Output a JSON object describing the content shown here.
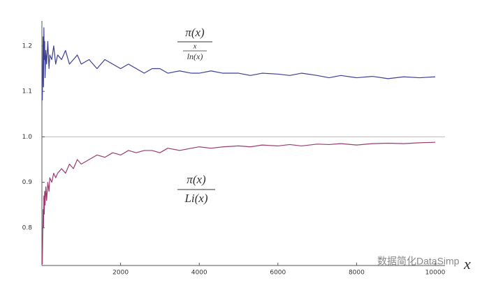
{
  "chart_data": {
    "type": "line",
    "x_label": "x",
    "x": [
      10,
      20,
      30,
      40,
      50,
      60,
      70,
      80,
      100,
      120,
      150,
      180,
      200,
      250,
      300,
      350,
      400,
      500,
      600,
      700,
      800,
      900,
      1000,
      1200,
      1400,
      1600,
      1800,
      2000,
      2200,
      2400,
      2600,
      2800,
      3000,
      3200,
      3500,
      3800,
      4000,
      4300,
      4600,
      5000,
      5300,
      5600,
      6000,
      6300,
      6600,
      7000,
      7300,
      7600,
      8000,
      8400,
      8800,
      9200,
      9600,
      10000
    ],
    "series": [
      {
        "color": "#3b3f96",
        "values": [
          1.08,
          1.15,
          1.22,
          1.11,
          1.24,
          1.17,
          1.21,
          1.13,
          1.19,
          1.16,
          1.21,
          1.15,
          1.18,
          1.17,
          1.2,
          1.16,
          1.18,
          1.17,
          1.19,
          1.16,
          1.17,
          1.18,
          1.16,
          1.17,
          1.15,
          1.17,
          1.16,
          1.15,
          1.16,
          1.15,
          1.14,
          1.15,
          1.15,
          1.14,
          1.145,
          1.14,
          1.14,
          1.145,
          1.14,
          1.14,
          1.135,
          1.14,
          1.138,
          1.135,
          1.14,
          1.135,
          1.13,
          1.135,
          1.13,
          1.133,
          1.128,
          1.132,
          1.13,
          1.132
        ]
      },
      {
        "color": "#9b3b6f",
        "values": [
          0.72,
          0.78,
          0.84,
          0.8,
          0.87,
          0.83,
          0.88,
          0.85,
          0.89,
          0.86,
          0.9,
          0.88,
          0.91,
          0.9,
          0.92,
          0.91,
          0.92,
          0.93,
          0.92,
          0.94,
          0.93,
          0.95,
          0.94,
          0.95,
          0.96,
          0.955,
          0.965,
          0.96,
          0.97,
          0.965,
          0.97,
          0.97,
          0.965,
          0.975,
          0.97,
          0.975,
          0.978,
          0.975,
          0.978,
          0.98,
          0.978,
          0.982,
          0.98,
          0.983,
          0.98,
          0.984,
          0.983,
          0.985,
          0.982,
          0.985,
          0.986,
          0.985,
          0.987,
          0.988
        ]
      }
    ],
    "annotations": [
      {
        "numerator": "π(x)",
        "denominator_top": "x",
        "denominator_bottom": "ln(x)"
      },
      {
        "numerator": "π(x)",
        "denominator": "Li(x)"
      }
    ],
    "reference_line": 1,
    "xlim": [
      0,
      10000
    ],
    "xticks": [
      2000,
      4000,
      6000,
      8000,
      10000
    ],
    "ylim": [
      0.717,
      1.255
    ],
    "yticks": [
      0.8,
      0.9,
      {
        "value": 1,
        "label": "1.0"
      },
      1.1,
      1.2
    ]
  },
  "watermark": "数据简化DataSimp"
}
